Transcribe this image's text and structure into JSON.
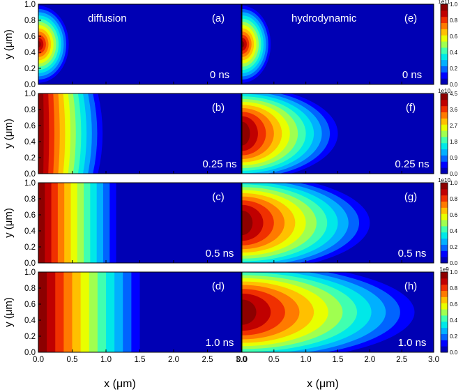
{
  "figure": {
    "column_titles": [
      "diffusion",
      "hydrodynamic"
    ],
    "xlabel": "x (μm)",
    "ylabel": "y (μm)"
  },
  "chart_data": {
    "type": "heatmap",
    "colormap": "jet",
    "xlim": [
      0.0,
      3.0
    ],
    "ylim": [
      0.0,
      1.0
    ],
    "x_ticks": [
      "0.0",
      "0.5",
      "1.0",
      "1.5",
      "2.0",
      "2.5",
      "3.0"
    ],
    "y_ticks": [
      "0.0",
      "0.2",
      "0.4",
      "0.6",
      "0.8",
      "1.0"
    ],
    "source_center": {
      "x": 0.0,
      "y": 0.5
    },
    "levels": 12,
    "panels": [
      {
        "label": "(a)",
        "model": "diffusion",
        "time": "0 ns",
        "profile": "radial",
        "extent_x": 0.45,
        "extent_y": 0.48
      },
      {
        "label": "(b)",
        "model": "diffusion",
        "time": "0.25 ns",
        "profile": "planar",
        "extent_x": 0.95,
        "bulge": 0.07
      },
      {
        "label": "(c)",
        "model": "diffusion",
        "time": "0.5 ns",
        "profile": "planar",
        "extent_x": 1.15,
        "bulge": 0.0
      },
      {
        "label": "(d)",
        "model": "diffusion",
        "time": "1.0 ns",
        "profile": "planar",
        "extent_x": 1.5,
        "bulge": 0.0
      },
      {
        "label": "(e)",
        "model": "hydrodynamic",
        "time": "0 ns",
        "profile": "radial",
        "extent_x": 0.45,
        "extent_y": 0.48
      },
      {
        "label": "(f)",
        "model": "hydrodynamic",
        "time": "0.25 ns",
        "profile": "elliptic",
        "extent_x": 1.5,
        "extent_y": 0.58
      },
      {
        "label": "(g)",
        "model": "hydrodynamic",
        "time": "0.5 ns",
        "profile": "elliptic",
        "extent_x": 2.0,
        "extent_y": 0.6
      },
      {
        "label": "(h)",
        "model": "hydrodynamic",
        "time": "1.0 ns",
        "profile": "elliptic",
        "extent_x": 2.7,
        "extent_y": 0.62
      }
    ],
    "colorbars": [
      {
        "scale": "1e11",
        "ticks": [
          "0.0",
          "0.2",
          "0.4",
          "0.6",
          "0.8",
          "1.0"
        ],
        "max": 1.0
      },
      {
        "scale": "1e10",
        "ticks": [
          "0.0",
          "0.9",
          "1.8",
          "2.7",
          "3.6",
          "4.5"
        ],
        "max": 4.5
      },
      {
        "scale": "1e10",
        "ticks": [
          "0.0",
          "0.2",
          "0.4",
          "0.6",
          "0.8",
          "1.0"
        ],
        "max": 1.0
      },
      {
        "scale": "1e9",
        "ticks": [
          "0.0",
          "0.2",
          "0.4",
          "0.6",
          "0.8",
          "1.0"
        ],
        "max": 1.0
      }
    ]
  }
}
